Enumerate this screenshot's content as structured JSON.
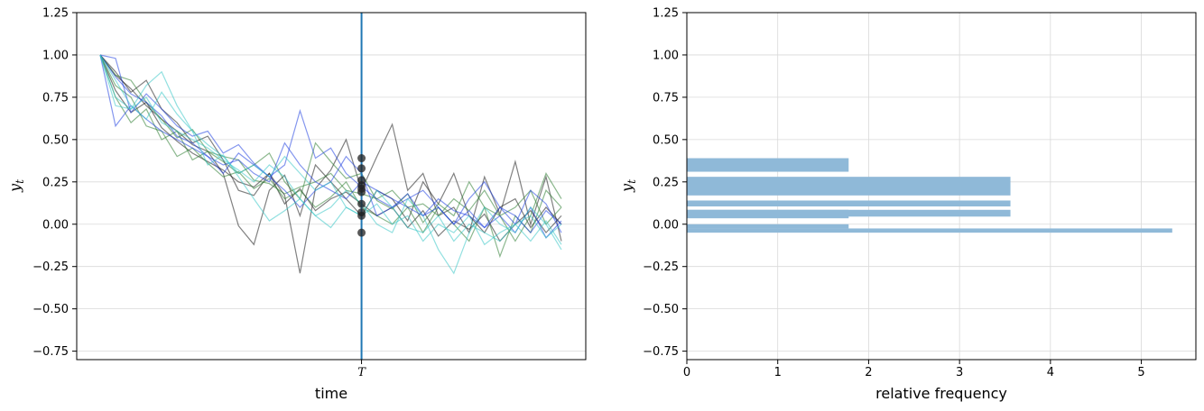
{
  "chart_data": [
    {
      "type": "line",
      "xlabel": "time",
      "ylabel": "y_t",
      "ylim": [
        -0.8,
        1.25
      ],
      "yticks": [
        "1.25",
        "1.00",
        "0.75",
        "0.50",
        "0.25",
        "0.00",
        "−0.25",
        "−0.50",
        "−0.75"
      ],
      "ytick_values": [
        1.25,
        1.0,
        0.75,
        0.5,
        0.25,
        0.0,
        -0.25,
        -0.5,
        -0.75
      ],
      "x_count": 31,
      "xtick_index": 17,
      "xtick_label": "T",
      "vline_index": 17,
      "vline_color": "#1f77b4",
      "grid": true,
      "colors": {
        "palette": [
          "#1a1a1a",
          "#2e7d32",
          "#1f3fe0",
          "#38c7c7"
        ],
        "marker": "#222222"
      },
      "series": [
        {
          "color": "#1a1a1a",
          "values": [
            1.0,
            0.9,
            0.78,
            0.85,
            0.68,
            0.6,
            0.48,
            0.52,
            0.38,
            0.2,
            0.17,
            0.3,
            0.17,
            -0.29,
            0.21,
            0.32,
            0.5,
            0.2,
            0.4,
            0.59,
            0.2,
            0.3,
            0.05,
            0.1,
            -0.05,
            0.28,
            0.06,
            0.37,
            0.0,
            0.28,
            -0.1
          ]
        },
        {
          "color": "#1a1a1a",
          "values": [
            1.0,
            0.88,
            0.8,
            0.7,
            0.62,
            0.55,
            0.47,
            0.43,
            0.3,
            -0.01,
            -0.12,
            0.2,
            0.29,
            0.05,
            0.35,
            0.25,
            0.15,
            0.05,
            0.2,
            0.15,
            0.02,
            0.25,
            0.12,
            0.3,
            0.05,
            -0.05,
            0.1,
            0.15,
            -0.02,
            0.1,
            0.0
          ]
        },
        {
          "color": "#1a1a1a",
          "values": [
            1.0,
            0.79,
            0.66,
            0.72,
            0.57,
            0.49,
            0.42,
            0.37,
            0.32,
            0.25,
            0.22,
            0.3,
            0.12,
            0.21,
            0.08,
            0.15,
            0.19,
            0.12,
            0.05,
            0.1,
            -0.02,
            0.08,
            -0.07,
            0.02,
            -0.03,
            0.06,
            -0.1,
            0.0,
            0.08,
            -0.05,
            0.05
          ]
        },
        {
          "color": "#2e7d32",
          "values": [
            1.0,
            0.88,
            0.85,
            0.72,
            0.62,
            0.51,
            0.56,
            0.43,
            0.4,
            0.38,
            0.26,
            0.24,
            0.18,
            0.22,
            0.25,
            0.3,
            0.2,
            0.18,
            0.15,
            0.2,
            0.1,
            0.12,
            0.05,
            0.15,
            0.08,
            0.2,
            0.05,
            0.1,
            0.2,
            0.0,
            0.1
          ]
        },
        {
          "color": "#2e7d32",
          "values": [
            1.0,
            0.75,
            0.6,
            0.68,
            0.5,
            0.55,
            0.38,
            0.43,
            0.37,
            0.3,
            0.35,
            0.42,
            0.25,
            0.15,
            0.48,
            0.37,
            0.27,
            0.3,
            0.14,
            0.09,
            0.18,
            0.01,
            0.12,
            0.05,
            0.25,
            0.1,
            0.05,
            -0.1,
            0.05,
            0.3,
            0.15
          ]
        },
        {
          "color": "#2e7d32",
          "values": [
            1.0,
            0.82,
            0.75,
            0.58,
            0.55,
            0.4,
            0.45,
            0.36,
            0.28,
            0.31,
            0.21,
            0.27,
            0.15,
            0.2,
            0.1,
            0.16,
            0.25,
            0.1,
            0.05,
            0.0,
            0.1,
            -0.05,
            0.1,
            0.0,
            -0.1,
            0.1,
            -0.19,
            0.05,
            -0.05,
            0.2,
            0.1
          ]
        },
        {
          "color": "#1f3fe0",
          "values": [
            1.0,
            0.98,
            0.66,
            0.77,
            0.68,
            0.58,
            0.52,
            0.55,
            0.42,
            0.47,
            0.36,
            0.28,
            0.35,
            0.67,
            0.39,
            0.45,
            0.3,
            0.22,
            0.15,
            0.1,
            0.18,
            0.05,
            0.15,
            0.08,
            0.05,
            -0.02,
            0.1,
            0.05,
            -0.05,
            0.08,
            0.0
          ]
        },
        {
          "color": "#1f3fe0",
          "values": [
            1.0,
            0.58,
            0.7,
            0.62,
            0.55,
            0.5,
            0.45,
            0.4,
            0.35,
            0.38,
            0.3,
            0.25,
            0.48,
            0.35,
            0.25,
            0.2,
            0.15,
            0.25,
            0.2,
            0.15,
            0.1,
            0.05,
            0.1,
            0.0,
            0.08,
            -0.02,
            0.05,
            -0.05,
            0.1,
            -0.08,
            0.02
          ]
        },
        {
          "color": "#1f3fe0",
          "values": [
            1.0,
            0.87,
            0.77,
            0.72,
            0.64,
            0.52,
            0.48,
            0.4,
            0.3,
            0.42,
            0.35,
            0.28,
            0.2,
            0.1,
            0.2,
            0.25,
            0.4,
            0.3,
            0.05,
            0.1,
            0.15,
            0.2,
            0.1,
            0.0,
            0.15,
            0.25,
            0.1,
            0.0,
            0.2,
            0.12,
            -0.05
          ]
        },
        {
          "color": "#38c7c7",
          "values": [
            1.0,
            0.75,
            0.68,
            0.82,
            0.9,
            0.7,
            0.55,
            0.35,
            0.41,
            0.28,
            0.15,
            0.02,
            0.08,
            0.15,
            0.05,
            0.1,
            0.2,
            0.12,
            0.0,
            -0.05,
            0.15,
            0.05,
            -0.15,
            -0.29,
            -0.05,
            0.1,
            0.0,
            -0.05,
            0.1,
            0.0,
            -0.15
          ]
        },
        {
          "color": "#38c7c7",
          "values": [
            1.0,
            0.7,
            0.68,
            0.75,
            0.6,
            0.55,
            0.5,
            0.45,
            0.38,
            0.32,
            0.25,
            0.35,
            0.28,
            0.15,
            0.05,
            -0.02,
            0.1,
            0.05,
            0.2,
            0.1,
            -0.02,
            -0.05,
            0.05,
            -0.1,
            0.0,
            -0.05,
            -0.1,
            0.0,
            0.05,
            -0.08,
            0.0
          ]
        },
        {
          "color": "#38c7c7",
          "values": [
            1.0,
            0.85,
            0.7,
            0.62,
            0.78,
            0.65,
            0.55,
            0.47,
            0.4,
            0.3,
            0.35,
            0.28,
            0.4,
            0.3,
            0.2,
            0.25,
            0.1,
            0.05,
            0.12,
            0.0,
            0.05,
            -0.1,
            0.0,
            -0.05,
            0.05,
            -0.12,
            -0.05,
            0.0,
            -0.1,
            0.02,
            -0.12
          ]
        }
      ],
      "markers": {
        "index": 17,
        "values": [
          0.39,
          0.33,
          0.26,
          0.23,
          0.21,
          0.19,
          0.12,
          0.07,
          0.05,
          -0.05
        ]
      }
    },
    {
      "type": "bar",
      "orientation": "horizontal",
      "xlabel": "relative frequency",
      "ylabel": "y_t",
      "ylim": [
        -0.8,
        1.25
      ],
      "xlim": [
        0,
        5.6
      ],
      "xticks": [
        "0",
        "1",
        "2",
        "3",
        "4",
        "5"
      ],
      "xtick_values": [
        0,
        1,
        2,
        3,
        4,
        5
      ],
      "yticks": [
        "1.25",
        "1.00",
        "0.75",
        "0.50",
        "0.25",
        "0.00",
        "−0.25",
        "−0.50",
        "−0.75"
      ],
      "ytick_values": [
        1.25,
        1.0,
        0.75,
        0.5,
        0.25,
        0.0,
        -0.25,
        -0.5,
        -0.75
      ],
      "grid": true,
      "color": "#8fb9d8",
      "bars": [
        {
          "y0": 0.31,
          "y1": 0.39,
          "value": 1.78
        },
        {
          "y0": 0.17,
          "y1": 0.28,
          "value": 3.56
        },
        {
          "y0": 0.105,
          "y1": 0.14,
          "value": 3.56
        },
        {
          "y0": 0.035,
          "y1": 0.085,
          "value": 1.78
        },
        {
          "y0": 0.045,
          "y1": 0.085,
          "value": 3.56
        },
        {
          "y0": -0.05,
          "y1": -0.025,
          "value": 5.34
        },
        {
          "y0": -0.025,
          "y1": 0.0,
          "value": 1.78
        }
      ]
    }
  ]
}
